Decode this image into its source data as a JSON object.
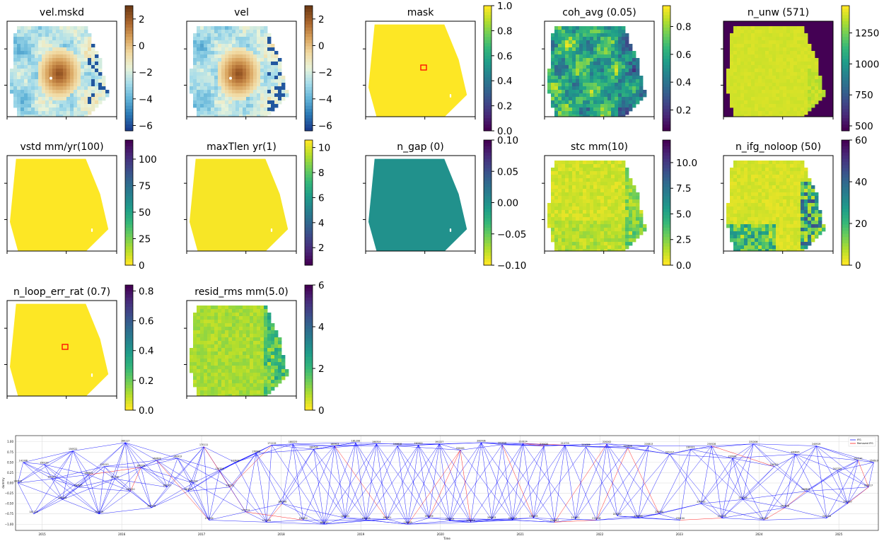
{
  "chart_data": [
    {
      "id": "vel_mskd",
      "type": "heatmap",
      "title": "vel.mskd",
      "image": "velocity",
      "masked": true,
      "colorbar": {
        "cmap": "RdYlBu_r",
        "ticks": [
          2,
          0,
          -2,
          -4,
          -6
        ],
        "range": [
          -6.4,
          3.0
        ]
      }
    },
    {
      "id": "vel",
      "type": "heatmap",
      "title": "vel",
      "image": "velocity",
      "masked": false,
      "colorbar": {
        "cmap": "RdYlBu_r",
        "ticks": [
          2,
          0,
          -2,
          -4,
          -6
        ],
        "range": [
          -6.4,
          3.0
        ]
      }
    },
    {
      "id": "mask",
      "type": "heatmap",
      "title": "mask",
      "image": "uniform",
      "fill_value": 1.0,
      "reference_box": true,
      "colorbar": {
        "cmap": "viridis",
        "ticks": [
          "1.0",
          "0.8",
          "0.6",
          "0.4",
          "0.2",
          "0.0"
        ],
        "range": [
          0.0,
          1.0
        ]
      }
    },
    {
      "id": "coh_avg",
      "type": "heatmap",
      "title": "coh_avg (0.05)",
      "image": "coherence",
      "colorbar": {
        "cmap": "viridis",
        "ticks": [
          "0.8",
          "0.6",
          "0.4",
          "0.2"
        ],
        "range": [
          0.05,
          0.95
        ]
      }
    },
    {
      "id": "n_unw",
      "type": "heatmap",
      "title": "n_unw (571)",
      "image": "n_unw",
      "background": "#440154",
      "colorbar": {
        "cmap": "viridis",
        "ticks": [
          1250,
          1000,
          750,
          500
        ],
        "range": [
          460,
          1470
        ]
      }
    },
    {
      "id": "vstd",
      "type": "heatmap",
      "title": "vstd mm/yr(100)",
      "image": "uniform",
      "fill_value": 0,
      "colorbar": {
        "cmap": "viridis_r",
        "ticks": [
          100,
          75,
          50,
          25,
          0
        ],
        "range": [
          0,
          118
        ]
      }
    },
    {
      "id": "maxTlen",
      "type": "heatmap",
      "title": "maxTlen yr(1)",
      "image": "uniform",
      "fill_value": 10.5,
      "colorbar": {
        "cmap": "viridis",
        "ticks": [
          10,
          8,
          6,
          4,
          2
        ],
        "range": [
          0.6,
          10.6
        ]
      }
    },
    {
      "id": "n_gap",
      "type": "heatmap",
      "title": "n_gap (0)",
      "image": "uniform",
      "fill_value": 0,
      "fill_color": "#21918c",
      "colorbar": {
        "cmap": "viridis_r",
        "ticks": [
          "0.10",
          "0.05",
          "0.00",
          "−0.05",
          "−0.10"
        ],
        "range": [
          -0.1,
          0.1
        ]
      }
    },
    {
      "id": "stc",
      "type": "heatmap",
      "title": "stc mm(10)",
      "image": "stc",
      "colorbar": {
        "cmap": "viridis_r",
        "ticks": [
          "10.0",
          "7.5",
          "5.0",
          "2.5",
          "0.0"
        ],
        "range": [
          0,
          12.2
        ]
      }
    },
    {
      "id": "n_ifg_noloop",
      "type": "heatmap",
      "title": "n_ifg_noloop (50)",
      "image": "noloop",
      "colorbar": {
        "cmap": "viridis_r",
        "ticks": [
          60,
          40,
          20,
          0
        ],
        "range": [
          0,
          60
        ]
      }
    },
    {
      "id": "n_loop_err_rat",
      "type": "heatmap",
      "title": "n_loop_err_rat (0.7)",
      "image": "uniform",
      "fill_value": 0,
      "reference_box": true,
      "colorbar": {
        "cmap": "viridis_r",
        "ticks": [
          "0.8",
          "0.6",
          "0.4",
          "0.2",
          "0.0"
        ],
        "range": [
          0,
          0.84
        ]
      }
    },
    {
      "id": "resid_rms",
      "type": "heatmap",
      "title": "resid_rms mm(5.0)",
      "image": "resid",
      "colorbar": {
        "cmap": "viridis_r",
        "ticks": [
          6,
          4,
          2,
          0
        ],
        "range": [
          0,
          6
        ]
      }
    },
    {
      "id": "ifg_network",
      "type": "line",
      "title": "",
      "xlabel": "Time",
      "ylabel": "dummy",
      "xlim": [
        "2014-09-01",
        "2025-07-01"
      ],
      "ylim": [
        -1.15,
        1.15
      ],
      "x_ticks": [
        "2015",
        "2016",
        "2017",
        "2018",
        "2019",
        "2020",
        "2021",
        "2022",
        "2023",
        "2024",
        "2025"
      ],
      "y_ticks": [
        "1.00",
        "0.75",
        "0.50",
        "0.25",
        "0.00",
        "−0.25",
        "−0.50",
        "−0.75",
        "−1.00"
      ],
      "legend": {
        "placement": "top-right",
        "entries": [
          {
            "name": "IFG",
            "color": "#0000ff"
          },
          {
            "name": "Removed IFG",
            "color": "#ff0000"
          }
        ]
      },
      "grid": true,
      "series_colors": {
        "ifg": "#0000ff",
        "removed": "#ff0000"
      },
      "epochs": [
        {
          "date": "2014-09-12",
          "y": 0.0
        },
        {
          "date": "2014-10-06",
          "y": 0.5
        },
        {
          "date": "2014-11-23",
          "y": -0.75
        },
        {
          "date": "2015-01-10",
          "y": 0.45
        },
        {
          "date": "2015-02-15",
          "y": 0.1
        },
        {
          "date": "2015-04-04",
          "y": -0.4
        },
        {
          "date": "2015-05-22",
          "y": 0.78
        },
        {
          "date": "2015-06-15",
          "y": -0.1
        },
        {
          "date": "2015-08-02",
          "y": 0.2
        },
        {
          "date": "2015-09-19",
          "y": -0.75
        },
        {
          "date": "2015-10-13",
          "y": 0.4
        },
        {
          "date": "2015-11-30",
          "y": 0.1
        },
        {
          "date": "2016-01-17",
          "y": 0.98
        },
        {
          "date": "2016-02-10",
          "y": -0.2
        },
        {
          "date": "2016-03-29",
          "y": 0.38
        },
        {
          "date": "2016-05-16",
          "y": -0.6
        },
        {
          "date": "2016-06-09",
          "y": 0.55
        },
        {
          "date": "2016-07-27",
          "y": -0.1
        },
        {
          "date": "2016-09-13",
          "y": 0.6
        },
        {
          "date": "2016-10-31",
          "y": -0.2
        },
        {
          "date": "2016-11-24",
          "y": 0.0
        },
        {
          "date": "2017-01-11",
          "y": 0.88
        },
        {
          "date": "2017-02-04",
          "y": -0.9
        },
        {
          "date": "2017-03-24",
          "y": 0.3
        },
        {
          "date": "2017-05-11",
          "y": -0.1
        },
        {
          "date": "2017-06-04",
          "y": 0.5
        },
        {
          "date": "2017-07-22",
          "y": -0.7
        },
        {
          "date": "2017-09-08",
          "y": 0.72
        },
        {
          "date": "2017-10-26",
          "y": -0.95
        },
        {
          "date": "2017-11-19",
          "y": 0.92
        },
        {
          "date": "2018-01-06",
          "y": -0.5
        },
        {
          "date": "2018-02-23",
          "y": 0.95
        },
        {
          "date": "2018-04-12",
          "y": -0.9
        },
        {
          "date": "2018-05-30",
          "y": 0.82
        },
        {
          "date": "2018-07-17",
          "y": -1.0
        },
        {
          "date": "2018-09-03",
          "y": 0.9
        },
        {
          "date": "2018-10-21",
          "y": -0.85
        },
        {
          "date": "2018-12-08",
          "y": 0.98
        },
        {
          "date": "2019-01-25",
          "y": -0.9
        },
        {
          "date": "2019-03-14",
          "y": 0.95
        },
        {
          "date": "2019-05-01",
          "y": -0.88
        },
        {
          "date": "2019-06-18",
          "y": 0.9
        },
        {
          "date": "2019-08-05",
          "y": -1.0
        },
        {
          "date": "2019-09-22",
          "y": 0.92
        },
        {
          "date": "2019-11-09",
          "y": -0.85
        },
        {
          "date": "2019-12-27",
          "y": 0.95
        },
        {
          "date": "2020-02-13",
          "y": -0.92
        },
        {
          "date": "2020-04-01",
          "y": 0.8
        },
        {
          "date": "2020-05-19",
          "y": -0.95
        },
        {
          "date": "2020-07-06",
          "y": 0.98
        },
        {
          "date": "2020-08-23",
          "y": -0.88
        },
        {
          "date": "2020-10-10",
          "y": 0.93
        },
        {
          "date": "2020-11-27",
          "y": -0.9
        },
        {
          "date": "2021-01-14",
          "y": 0.96
        },
        {
          "date": "2021-03-03",
          "y": -0.85
        },
        {
          "date": "2021-04-20",
          "y": 0.9
        },
        {
          "date": "2021-06-07",
          "y": -0.95
        },
        {
          "date": "2021-07-25",
          "y": 0.92
        },
        {
          "date": "2021-09-11",
          "y": -0.88
        },
        {
          "date": "2021-10-29",
          "y": 0.88
        },
        {
          "date": "2021-12-16",
          "y": -0.9
        },
        {
          "date": "2022-02-02",
          "y": 0.95
        },
        {
          "date": "2022-03-22",
          "y": -0.8
        },
        {
          "date": "2022-05-09",
          "y": 0.85
        },
        {
          "date": "2022-06-26",
          "y": -0.85
        },
        {
          "date": "2022-08-13",
          "y": 0.9
        },
        {
          "date": "2022-09-30",
          "y": -0.75
        },
        {
          "date": "2022-11-17",
          "y": 0.7
        },
        {
          "date": "2023-01-04",
          "y": -0.9
        },
        {
          "date": "2023-02-21",
          "y": 0.82
        },
        {
          "date": "2023-04-10",
          "y": -0.5
        },
        {
          "date": "2023-05-28",
          "y": 0.9
        },
        {
          "date": "2023-07-15",
          "y": -0.85
        },
        {
          "date": "2023-09-01",
          "y": 0.6
        },
        {
          "date": "2023-10-19",
          "y": -0.4
        },
        {
          "date": "2023-12-06",
          "y": 0.95
        },
        {
          "date": "2024-01-23",
          "y": -0.9
        },
        {
          "date": "2024-03-11",
          "y": 0.4
        },
        {
          "date": "2024-04-28",
          "y": -0.6
        },
        {
          "date": "2024-06-15",
          "y": 0.7
        },
        {
          "date": "2024-08-02",
          "y": -0.2
        },
        {
          "date": "2024-09-19",
          "y": 0.9
        },
        {
          "date": "2024-11-06",
          "y": -0.85
        },
        {
          "date": "2024-12-24",
          "y": 0.3
        },
        {
          "date": "2025-02-10",
          "y": -0.5
        },
        {
          "date": "2025-03-30",
          "y": 0.55
        },
        {
          "date": "2025-05-17",
          "y": -0.1
        },
        {
          "date": "2025-06-10",
          "y": 0.5
        }
      ]
    }
  ]
}
